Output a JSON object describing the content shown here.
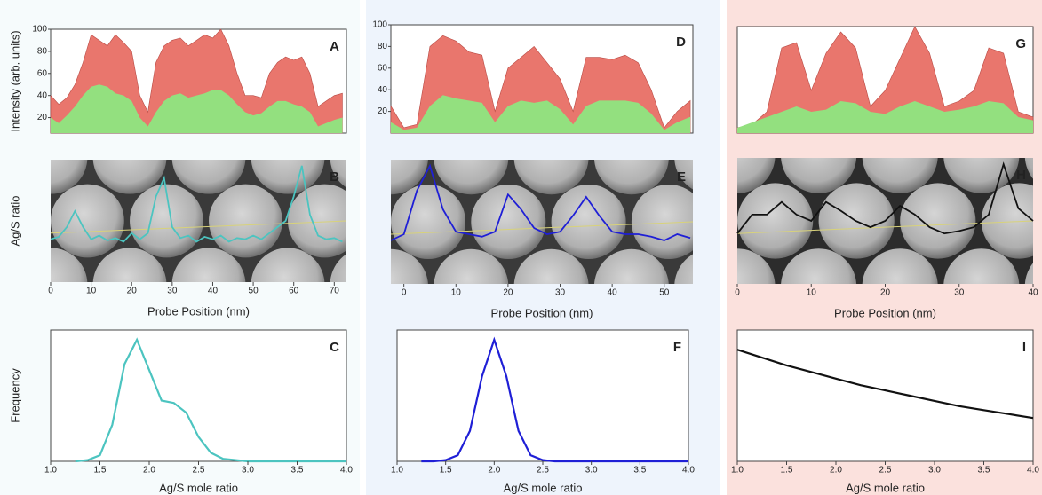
{
  "chart_data": [
    {
      "type": "area",
      "label": "A",
      "ylabel": "Intensity (arb. units)",
      "x": [
        0,
        2,
        4,
        6,
        8,
        10,
        12,
        14,
        16,
        18,
        20,
        22,
        24,
        26,
        28,
        30,
        32,
        34,
        36,
        38,
        40,
        42,
        44,
        46,
        48,
        50,
        52,
        54,
        56,
        58,
        60,
        62,
        64,
        66,
        68,
        70,
        72
      ],
      "series": [
        {
          "color": "#e9766d",
          "values": [
            40,
            32,
            38,
            50,
            70,
            95,
            90,
            85,
            95,
            88,
            80,
            40,
            25,
            70,
            85,
            90,
            92,
            85,
            90,
            95,
            92,
            100,
            85,
            60,
            40,
            40,
            38,
            60,
            70,
            75,
            72,
            75,
            60,
            30,
            35,
            40,
            42
          ]
        },
        {
          "color": "#93e07f",
          "values": [
            20,
            15,
            22,
            30,
            40,
            48,
            50,
            48,
            42,
            40,
            35,
            20,
            12,
            25,
            35,
            40,
            42,
            38,
            40,
            42,
            45,
            45,
            40,
            32,
            25,
            22,
            24,
            30,
            35,
            35,
            32,
            30,
            25,
            12,
            15,
            18,
            20
          ]
        }
      ],
      "xlim": [
        0,
        73
      ],
      "ylim": [
        6,
        100
      ],
      "yticks": [
        20,
        40,
        60,
        80,
        100
      ]
    },
    {
      "type": "line",
      "label": "B",
      "ylabel": "Ag/S ratio",
      "xlabel": "Probe Position (nm)",
      "x": [
        0,
        2,
        4,
        6,
        8,
        10,
        12,
        14,
        16,
        18,
        20,
        22,
        24,
        26,
        28,
        30,
        32,
        34,
        36,
        38,
        40,
        42,
        44,
        46,
        48,
        50,
        52,
        54,
        56,
        58,
        60,
        62,
        64,
        66,
        68,
        70,
        72
      ],
      "values": [
        0.35,
        0.37,
        0.45,
        0.58,
        0.45,
        0.35,
        0.38,
        0.34,
        0.36,
        0.33,
        0.4,
        0.35,
        0.4,
        0.7,
        0.85,
        0.45,
        0.36,
        0.38,
        0.33,
        0.37,
        0.35,
        0.38,
        0.33,
        0.36,
        0.35,
        0.38,
        0.35,
        0.4,
        0.45,
        0.5,
        0.7,
        0.95,
        0.55,
        0.38,
        0.35,
        0.36,
        0.33
      ],
      "color": "#4cc4c0",
      "xlim": [
        0,
        73
      ],
      "ylim": [
        0,
        1
      ],
      "xticks": [
        0,
        10,
        20,
        30,
        40,
        50,
        60,
        70
      ]
    },
    {
      "type": "line",
      "label": "C",
      "ylabel": "Frequency",
      "xlabel": "Ag/S mole ratio",
      "x": [
        1.25,
        1.375,
        1.5,
        1.625,
        1.75,
        1.875,
        2.0,
        2.125,
        2.25,
        2.375,
        2.5,
        2.625,
        2.75,
        2.875,
        3.0,
        3.125,
        3.25,
        3.375,
        3.5,
        3.625,
        3.75,
        3.875,
        4.0
      ],
      "values": [
        0,
        0.01,
        0.05,
        0.3,
        0.8,
        1.0,
        0.75,
        0.5,
        0.48,
        0.4,
        0.2,
        0.07,
        0.02,
        0.01,
        0,
        0,
        0,
        0,
        0,
        0,
        0,
        0,
        0
      ],
      "color": "#4cc4c0",
      "xlim": [
        1,
        4
      ],
      "ylim": [
        0,
        1.08
      ],
      "xticks": [
        {
          "value": 1,
          "label": "1.0"
        },
        1.5,
        {
          "value": 2,
          "label": "2.0"
        },
        2.5,
        {
          "value": 3,
          "label": "3.0"
        },
        3.5,
        {
          "value": 4,
          "label": "4.0"
        }
      ]
    },
    {
      "type": "area",
      "label": "D",
      "x": [
        -2.5,
        0,
        2.5,
        5,
        7.5,
        10,
        12.5,
        15,
        17.5,
        20,
        22.5,
        25,
        27.5,
        30,
        32.5,
        35,
        37.5,
        40,
        42.5,
        45,
        47.5,
        50,
        52.5,
        55
      ],
      "series": [
        {
          "color": "#e9766d",
          "values": [
            25,
            5,
            8,
            80,
            90,
            85,
            75,
            72,
            20,
            60,
            70,
            80,
            65,
            50,
            20,
            70,
            70,
            68,
            72,
            65,
            40,
            5,
            20,
            30
          ]
        },
        {
          "color": "#93e07f",
          "values": [
            10,
            3,
            5,
            25,
            35,
            32,
            30,
            28,
            10,
            25,
            30,
            28,
            30,
            22,
            8,
            25,
            30,
            30,
            30,
            28,
            18,
            3,
            10,
            15
          ]
        }
      ],
      "xlim": [
        -2.5,
        55.5
      ],
      "ylim": [
        0,
        100
      ],
      "yticks": [
        20,
        40,
        60,
        80,
        100
      ]
    },
    {
      "type": "line",
      "label": "E",
      "xlabel": "Probe Position (nm)",
      "x": [
        -2.5,
        0,
        2.5,
        5,
        7.5,
        10,
        12.5,
        15,
        17.5,
        20,
        22.5,
        25,
        27.5,
        30,
        32.5,
        35,
        37.5,
        40,
        42.5,
        45,
        47.5,
        50,
        52.5,
        55
      ],
      "values": [
        0.35,
        0.4,
        0.75,
        0.95,
        0.6,
        0.42,
        0.4,
        0.38,
        0.42,
        0.72,
        0.6,
        0.45,
        0.4,
        0.42,
        0.55,
        0.7,
        0.55,
        0.42,
        0.4,
        0.4,
        0.38,
        0.35,
        0.4,
        0.37
      ],
      "color": "#1f1fd6",
      "xlim": [
        -2.5,
        55.5
      ],
      "ylim": [
        0,
        1
      ],
      "xticks": [
        0,
        10,
        20,
        30,
        40,
        50
      ]
    },
    {
      "type": "line",
      "label": "F",
      "xlabel": "Ag/S mole ratio",
      "x": [
        1.25,
        1.375,
        1.5,
        1.625,
        1.75,
        1.875,
        2.0,
        2.125,
        2.25,
        2.375,
        2.5,
        2.625,
        2.75,
        2.875,
        3.0,
        3.125,
        3.25,
        3.375,
        3.5,
        3.625,
        3.75,
        3.875,
        4.0
      ],
      "values": [
        0,
        0,
        0.01,
        0.05,
        0.25,
        0.7,
        1.0,
        0.7,
        0.25,
        0.05,
        0.01,
        0,
        0,
        0,
        0,
        0,
        0,
        0,
        0,
        0,
        0,
        0,
        0
      ],
      "color": "#1f1fd6",
      "xlim": [
        1,
        4
      ],
      "ylim": [
        0,
        1.08
      ],
      "xticks": [
        {
          "value": 1,
          "label": "1.0"
        },
        1.5,
        {
          "value": 2,
          "label": "2.0"
        },
        2.5,
        {
          "value": 3,
          "label": "3.0"
        },
        3.5,
        {
          "value": 4,
          "label": "4.0"
        }
      ]
    },
    {
      "type": "area",
      "label": "G",
      "x": [
        0,
        2,
        4,
        6,
        8,
        10,
        12,
        14,
        16,
        18,
        20,
        22,
        24,
        26,
        28,
        30,
        32,
        34,
        36,
        38,
        40
      ],
      "series": [
        {
          "color": "#e9766d",
          "values": [
            5,
            8,
            20,
            80,
            85,
            40,
            75,
            95,
            80,
            25,
            40,
            70,
            100,
            75,
            25,
            30,
            40,
            80,
            75,
            20,
            15
          ]
        },
        {
          "color": "#93e07f",
          "values": [
            5,
            10,
            15,
            20,
            25,
            20,
            22,
            30,
            28,
            20,
            18,
            25,
            30,
            25,
            20,
            22,
            25,
            30,
            28,
            15,
            12
          ]
        }
      ],
      "xlim": [
        0,
        40
      ],
      "ylim": [
        0,
        100
      ]
    },
    {
      "type": "line",
      "label": "H",
      "xlabel": "Probe Position (nm)",
      "x": [
        0,
        2,
        4,
        6,
        8,
        10,
        12,
        14,
        16,
        18,
        20,
        22,
        24,
        26,
        28,
        30,
        32,
        34,
        36,
        38,
        40
      ],
      "values": [
        0.4,
        0.55,
        0.55,
        0.65,
        0.55,
        0.5,
        0.65,
        0.58,
        0.5,
        0.45,
        0.5,
        0.62,
        0.55,
        0.45,
        0.4,
        0.42,
        0.45,
        0.55,
        0.95,
        0.6,
        0.5
      ],
      "color": "#111111",
      "xlim": [
        0,
        40
      ],
      "ylim": [
        0,
        1
      ],
      "xticks": [
        0,
        10,
        20,
        30,
        40
      ]
    },
    {
      "type": "line",
      "label": "I",
      "xlabel": "Ag/S mole ratio",
      "x": [
        1.0,
        1.25,
        1.5,
        1.75,
        2.0,
        2.25,
        2.5,
        2.75,
        3.0,
        3.25,
        3.5,
        3.75,
        4.0
      ],
      "values": [
        0.85,
        0.79,
        0.73,
        0.68,
        0.63,
        0.58,
        0.54,
        0.5,
        0.46,
        0.42,
        0.39,
        0.36,
        0.33
      ],
      "color": "#111111",
      "xlim": [
        1,
        4
      ],
      "ylim": [
        0,
        1
      ],
      "xticks": [
        {
          "value": 1,
          "label": "1.0"
        },
        1.5,
        {
          "value": 2,
          "label": "2.0"
        },
        2.5,
        {
          "value": 3,
          "label": "3.0"
        },
        3.5,
        {
          "value": 4,
          "label": "4.0"
        }
      ]
    }
  ]
}
